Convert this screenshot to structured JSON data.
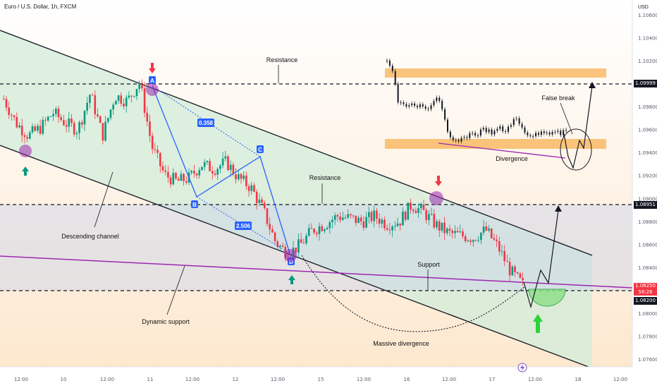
{
  "header": {
    "symbol": "Euro / U.S. Dollar, 1h, FXCM",
    "currency": "USD"
  },
  "colors": {
    "bull": "#089981",
    "bear": "#f23645",
    "channel_fill": "#b7e3c7",
    "resistance_zone": "#f8a73c",
    "pattern": "#2962ff",
    "dynamic_support": "#9c27b0",
    "arrow_up": "#089981",
    "arrow_down": "#f23645",
    "marker": "#9c27b0",
    "cup_fill": "#8fe08a"
  },
  "chart_data": {
    "type": "candlestick",
    "title": "Euro / U.S. Dollar, 1h, FXCM",
    "ylabel": "USD",
    "y_ticks": [
      "1.10600",
      "1.10400",
      "1.10200",
      "1.09800",
      "1.09600",
      "1.09400",
      "1.09200",
      "1.09000",
      "1.08800",
      "1.08600",
      "1.08400",
      "1.08000",
      "1.07800",
      "1.07600"
    ],
    "x_ticks": [
      "12:00",
      "10",
      "12:00",
      "11",
      "12:00",
      "12",
      "12:00",
      "15",
      "12:00",
      "16",
      "12:00",
      "17",
      "12:00",
      "18",
      "12:00"
    ],
    "levels": {
      "resistance_high": "1.09999",
      "resistance_mid": "1.08951",
      "last_price": "1.08250",
      "countdown": "58:26",
      "support": "1.08200"
    },
    "pattern_points": [
      "A",
      "B",
      "C",
      "D"
    ],
    "ratios": [
      "0.358",
      "2.506"
    ],
    "annotations": {
      "resistance_top": "Resistance",
      "resistance_mid": "Resistance",
      "descending_channel": "Descending channel",
      "dynamic_support": "Dynamic support",
      "support": "Support",
      "massive_divergence": "Massive divergence",
      "false_break": "False break",
      "divergence": "Divergence"
    },
    "series_close_approx": [
      1.0987,
      1.0966,
      1.0955,
      1.0962,
      1.0975,
      1.0966,
      1.096,
      1.0992,
      1.0955,
      1.099,
      1.0985,
      1.1002,
      1.0945,
      1.0921,
      1.0915,
      1.0918,
      1.093,
      1.0926,
      1.0932,
      1.0918,
      1.091,
      1.089,
      1.0862,
      1.0852,
      1.086,
      1.0873,
      1.0878,
      1.0885,
      1.0883,
      1.088,
      1.0885,
      1.0878,
      1.088,
      1.0895,
      1.0888,
      1.0877,
      1.087,
      1.0868,
      1.0866,
      1.0873,
      1.0858,
      1.0837,
      1.0825
    ]
  }
}
